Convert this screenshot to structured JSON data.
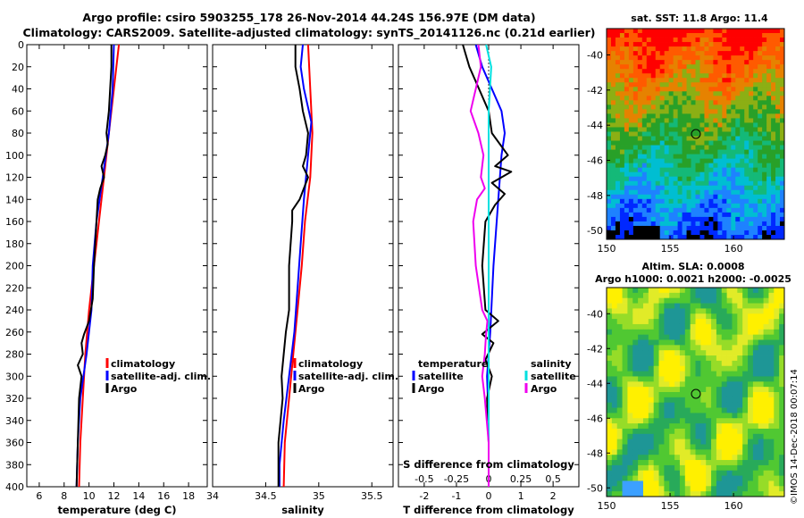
{
  "title": {
    "line1": "Argo profile: csiro 5903255_178 26-Nov-2014 44.24S 156.97E (DM data)",
    "line2": "Climatology: CARS2009. Satellite-adjusted climatology: synTS_20141126.nc (0.21d earlier)"
  },
  "credit": "©IMOS 14-Dec-2018 00:07:14",
  "colors": {
    "climatology": "#ff0000",
    "satellite": "#0000ff",
    "argo": "#000000",
    "salinity_satellite": "#00e0e0",
    "salinity_argo": "#ee00ee"
  },
  "chart_data": [
    {
      "id": "temperature",
      "type": "line",
      "xlabel": "temperature (deg C)",
      "xlim": [
        5,
        19.5
      ],
      "xticks": [
        "6",
        "8",
        "10",
        "12",
        "14",
        "16",
        "18"
      ],
      "ylim": [
        0,
        400
      ],
      "yticks": [
        "0",
        "20",
        "40",
        "60",
        "80",
        "100",
        "120",
        "140",
        "160",
        "180",
        "200",
        "220",
        "240",
        "260",
        "280",
        "300",
        "320",
        "340",
        "360",
        "380",
        "400"
      ],
      "legend": [
        "climatology",
        "satellite-adj. clim.",
        "Argo"
      ],
      "series": [
        {
          "name": "climatology",
          "color": "#ff0000",
          "points": [
            [
              12.4,
              0
            ],
            [
              12.0,
              40
            ],
            [
              11.6,
              80
            ],
            [
              11.2,
              120
            ],
            [
              10.8,
              160
            ],
            [
              10.4,
              200
            ],
            [
              10.0,
              240
            ],
            [
              9.7,
              280
            ],
            [
              9.5,
              320
            ],
            [
              9.3,
              360
            ],
            [
              9.2,
              400
            ]
          ]
        },
        {
          "name": "satellite-adj. clim.",
          "color": "#0000ff",
          "points": [
            [
              12.0,
              0
            ],
            [
              11.9,
              40
            ],
            [
              11.6,
              80
            ],
            [
              11.1,
              120
            ],
            [
              10.6,
              160
            ],
            [
              10.3,
              200
            ],
            [
              10.2,
              240
            ],
            [
              9.8,
              280
            ],
            [
              9.3,
              320
            ],
            [
              9.1,
              360
            ],
            [
              9.0,
              400
            ]
          ]
        },
        {
          "name": "Argo",
          "color": "#000000",
          "points": [
            [
              11.8,
              0
            ],
            [
              11.8,
              20
            ],
            [
              11.7,
              40
            ],
            [
              11.6,
              60
            ],
            [
              11.4,
              80
            ],
            [
              11.5,
              90
            ],
            [
              11.3,
              100
            ],
            [
              11.0,
              110
            ],
            [
              11.2,
              120
            ],
            [
              10.9,
              130
            ],
            [
              10.7,
              140
            ],
            [
              10.6,
              160
            ],
            [
              10.4,
              200
            ],
            [
              10.3,
              230
            ],
            [
              10.0,
              250
            ],
            [
              9.6,
              262
            ],
            [
              9.4,
              270
            ],
            [
              9.5,
              280
            ],
            [
              9.1,
              290
            ],
            [
              9.4,
              300
            ],
            [
              9.2,
              320
            ],
            [
              9.1,
              360
            ],
            [
              9.0,
              400
            ]
          ]
        }
      ]
    },
    {
      "id": "salinity",
      "type": "line",
      "xlabel": "salinity",
      "xlim": [
        34,
        35.7
      ],
      "xticks": [
        "34",
        "34.5",
        "35",
        "35.5"
      ],
      "ylim": [
        0,
        400
      ],
      "legend": [
        "climatology",
        "satellite-adj. clim.",
        "Argo"
      ],
      "series": [
        {
          "name": "climatology",
          "color": "#ff0000",
          "points": [
            [
              34.9,
              0
            ],
            [
              34.92,
              40
            ],
            [
              34.94,
              80
            ],
            [
              34.92,
              120
            ],
            [
              34.87,
              160
            ],
            [
              34.84,
              200
            ],
            [
              34.8,
              240
            ],
            [
              34.76,
              280
            ],
            [
              34.72,
              320
            ],
            [
              34.68,
              360
            ],
            [
              34.67,
              400
            ]
          ]
        },
        {
          "name": "satellite-adj. clim.",
          "color": "#0000ff",
          "points": [
            [
              34.85,
              0
            ],
            [
              34.83,
              20
            ],
            [
              34.86,
              40
            ],
            [
              34.93,
              70
            ],
            [
              34.9,
              100
            ],
            [
              34.86,
              140
            ],
            [
              34.83,
              180
            ],
            [
              34.8,
              220
            ],
            [
              34.77,
              260
            ],
            [
              34.72,
              300
            ],
            [
              34.67,
              340
            ],
            [
              34.63,
              380
            ],
            [
              34.63,
              400
            ]
          ]
        },
        {
          "name": "Argo",
          "color": "#000000",
          "points": [
            [
              34.78,
              0
            ],
            [
              34.78,
              20
            ],
            [
              34.82,
              40
            ],
            [
              34.85,
              60
            ],
            [
              34.9,
              80
            ],
            [
              34.88,
              100
            ],
            [
              34.85,
              110
            ],
            [
              34.9,
              120
            ],
            [
              34.82,
              140
            ],
            [
              34.75,
              150
            ],
            [
              34.75,
              160
            ],
            [
              34.72,
              200
            ],
            [
              34.72,
              240
            ],
            [
              34.69,
              260
            ],
            [
              34.67,
              280
            ],
            [
              34.65,
              300
            ],
            [
              34.66,
              320
            ],
            [
              34.62,
              360
            ],
            [
              34.62,
              400
            ]
          ]
        }
      ]
    },
    {
      "id": "difference",
      "type": "line",
      "xlabel": "T difference from climatology",
      "xlim": [
        -2.8,
        2.8
      ],
      "xticks": [
        "-2",
        "-1",
        "0",
        "1",
        "2"
      ],
      "x2label": "S difference from climatology",
      "x2lim": [
        -0.7,
        0.7
      ],
      "x2ticks": [
        "-0.5",
        "-0.25",
        "0",
        "0.25",
        "0.5"
      ],
      "ylim": [
        0,
        400
      ],
      "legend_temperature": {
        "title": "temperature",
        "items": [
          "satellite",
          "Argo"
        ]
      },
      "legend_salinity": {
        "title": "salinity",
        "items": [
          "satellite",
          "Argo"
        ]
      },
      "series": [
        {
          "name": "temperature satellite",
          "color": "#0000ff",
          "axis": "T",
          "points": [
            [
              -0.4,
              0
            ],
            [
              -0.2,
              20
            ],
            [
              0.1,
              40
            ],
            [
              0.4,
              60
            ],
            [
              0.5,
              80
            ],
            [
              0.4,
              100
            ],
            [
              0.3,
              140
            ],
            [
              0.15,
              200
            ],
            [
              0.05,
              260
            ],
            [
              -0.05,
              300
            ],
            [
              0,
              340
            ],
            [
              0,
              400
            ]
          ]
        },
        {
          "name": "temperature Argo",
          "color": "#000000",
          "axis": "T",
          "points": [
            [
              -0.8,
              0
            ],
            [
              -0.6,
              20
            ],
            [
              -0.3,
              40
            ],
            [
              0,
              60
            ],
            [
              0.1,
              80
            ],
            [
              0.6,
              100
            ],
            [
              0.2,
              110
            ],
            [
              0.7,
              115
            ],
            [
              0.1,
              125
            ],
            [
              0.5,
              135
            ],
            [
              0.2,
              145
            ],
            [
              -0.1,
              160
            ],
            [
              -0.2,
              200
            ],
            [
              -0.1,
              240
            ],
            [
              0.3,
              250
            ],
            [
              -0.2,
              262
            ],
            [
              0.15,
              270
            ],
            [
              -0.1,
              285
            ],
            [
              0.1,
              300
            ],
            [
              -0.05,
              320
            ],
            [
              0,
              360
            ],
            [
              0,
              400
            ]
          ]
        },
        {
          "name": "salinity satellite",
          "color": "#00e0e0",
          "axis": "S",
          "points": [
            [
              -0.02,
              0
            ],
            [
              0.02,
              20
            ],
            [
              0,
              60
            ],
            [
              0,
              100
            ],
            [
              0,
              200
            ],
            [
              0,
              300
            ],
            [
              0,
              400
            ]
          ]
        },
        {
          "name": "salinity Argo",
          "color": "#ee00ee",
          "axis": "S",
          "points": [
            [
              -0.08,
              0
            ],
            [
              -0.06,
              20
            ],
            [
              -0.1,
              40
            ],
            [
              -0.14,
              60
            ],
            [
              -0.08,
              80
            ],
            [
              -0.04,
              100
            ],
            [
              -0.06,
              120
            ],
            [
              -0.03,
              130
            ],
            [
              -0.09,
              140
            ],
            [
              -0.12,
              160
            ],
            [
              -0.1,
              200
            ],
            [
              -0.05,
              240
            ],
            [
              -0.01,
              250
            ],
            [
              -0.02,
              262
            ],
            [
              -0.03,
              280
            ],
            [
              -0.05,
              300
            ],
            [
              -0.03,
              320
            ],
            [
              0,
              360
            ],
            [
              0,
              400
            ]
          ]
        }
      ]
    }
  ],
  "maps": {
    "sst": {
      "title": "sat. SST: 11.8 Argo: 11.4",
      "xlim": [
        150,
        164
      ],
      "ylim": [
        -50.5,
        -38.5
      ],
      "xticks": [
        "150",
        "155",
        "160"
      ],
      "yticks": [
        "-40",
        "-42",
        "-44",
        "-46",
        "-48",
        "-50"
      ],
      "argo_position": {
        "lon": 156.97,
        "lat": -44.24
      }
    },
    "sla": {
      "title1": "Altim. SLA: 0.0008",
      "title2": "Argo h1000: 0.0021 h2000: -0.0025",
      "xlim": [
        150,
        164
      ],
      "ylim": [
        -50.5,
        -38.5
      ],
      "xticks": [
        "150",
        "155",
        "160"
      ],
      "yticks": [
        "-40",
        "-42",
        "-44",
        "-46",
        "-48",
        "-50"
      ],
      "argo_position": {
        "lon": 156.97,
        "lat": -44.24
      }
    }
  }
}
